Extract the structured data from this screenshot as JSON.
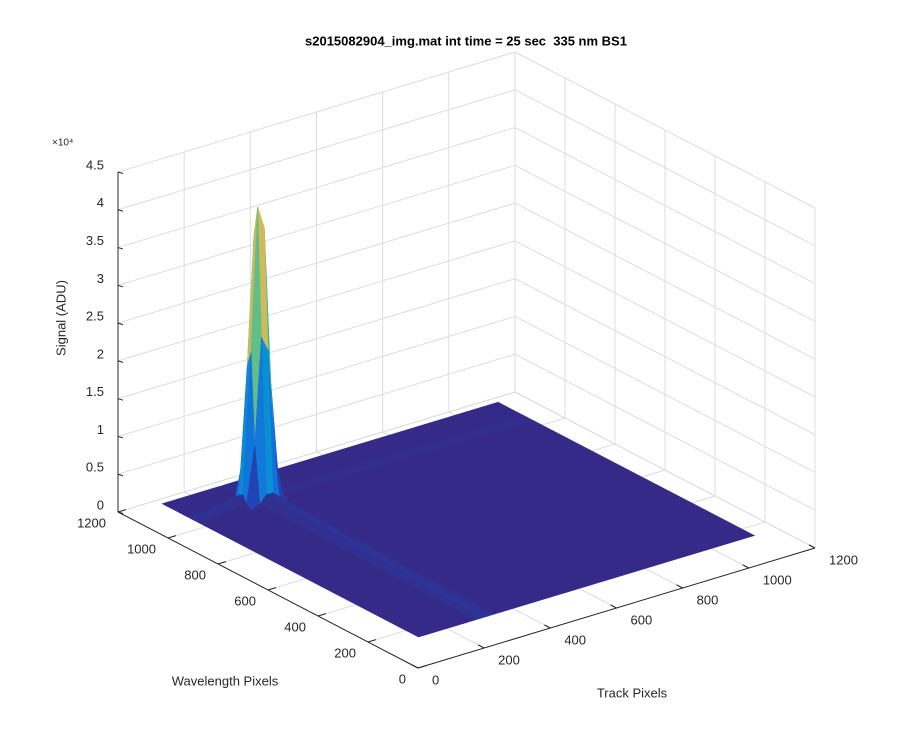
{
  "chart_data": {
    "type": "surface",
    "title": "s2015082904_img.mat int time = 25 sec  335 nm BS1",
    "xlabel": "Track Pixels",
    "ylabel": "Wavelength Pixels",
    "zlabel": "Signal (ADU)",
    "z_exponent_label": "×10⁴",
    "xlim": [
      0,
      1200
    ],
    "ylim": [
      0,
      1200
    ],
    "zlim": [
      0,
      45000
    ],
    "xticks": [
      0,
      200,
      400,
      600,
      800,
      1000,
      1200
    ],
    "yticks": [
      0,
      200,
      400,
      600,
      800,
      1000,
      1200
    ],
    "zticks": [
      0,
      {
        "value": 5000,
        "label": "0.5"
      },
      {
        "value": 10000,
        "label": "1"
      },
      {
        "value": 15000,
        "label": "1.5"
      },
      {
        "value": 20000,
        "label": "2"
      },
      {
        "value": 25000,
        "label": "2.5"
      },
      {
        "value": 30000,
        "label": "3"
      },
      {
        "value": 35000,
        "label": "3.5"
      },
      {
        "value": 40000,
        "label": "4"
      },
      {
        "value": 45000,
        "label": "4.5"
      }
    ],
    "grid": true,
    "colormap": "parula",
    "x": [
      115,
      260,
      285,
      305,
      325,
      345,
      370,
      1130
    ],
    "y": [
      150,
      1010,
      1030,
      1045,
      1060,
      1075,
      1090,
      1175
    ],
    "values": [
      [
        0,
        0,
        0,
        0,
        0,
        0,
        0,
        0
      ],
      [
        0,
        0,
        500,
        1500,
        1500,
        500,
        0,
        0
      ],
      [
        0,
        500,
        8000,
        22000,
        20000,
        6000,
        300,
        0
      ],
      [
        0,
        1500,
        20000,
        39000,
        36000,
        15000,
        800,
        0
      ],
      [
        0,
        1200,
        18000,
        35000,
        33000,
        12000,
        600,
        0
      ],
      [
        0,
        400,
        6000,
        15000,
        12000,
        4000,
        200,
        0
      ],
      [
        0,
        0,
        300,
        800,
        600,
        200,
        0,
        0
      ],
      [
        0,
        0,
        0,
        0,
        0,
        0,
        0,
        0
      ]
    ]
  }
}
